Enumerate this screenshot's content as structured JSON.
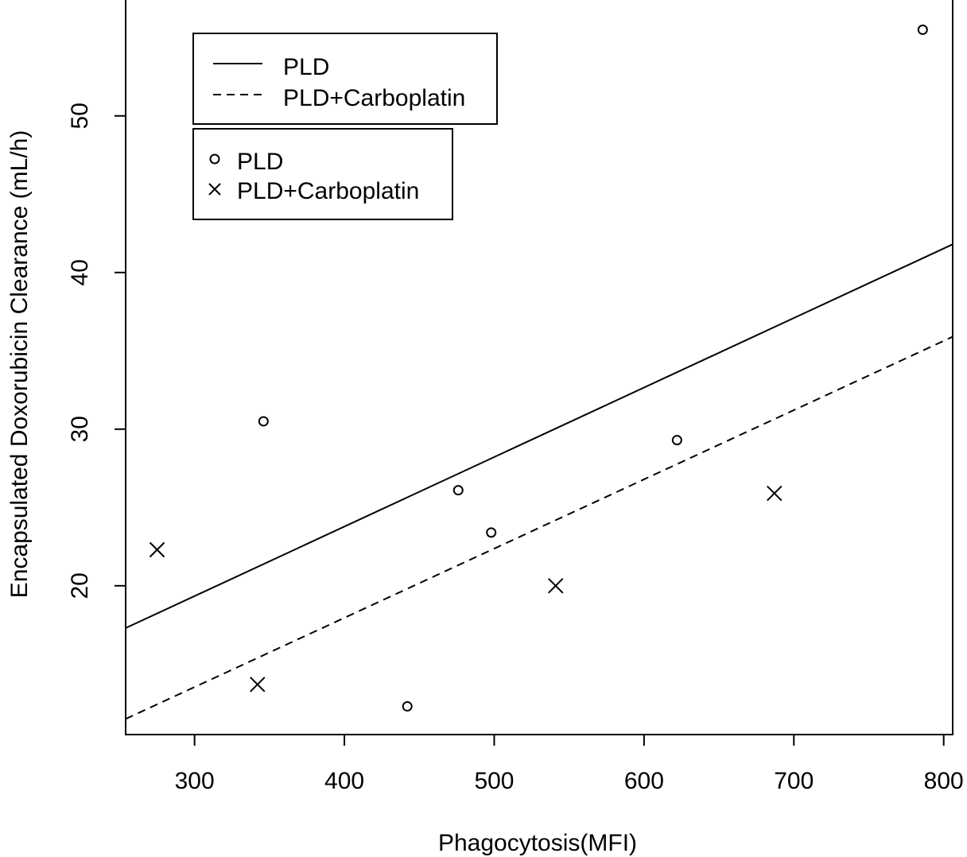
{
  "chart_data": {
    "type": "scatter",
    "title": "",
    "xlabel": "Phagocytosis(MFI)",
    "ylabel": "Encapsulated Doxorubicin Clearance (mL/h)",
    "xlim": [
      254,
      806
    ],
    "ylim": [
      10.5,
      57.5
    ],
    "x_ticks": [
      300,
      400,
      500,
      600,
      700,
      800
    ],
    "y_ticks": [
      20,
      30,
      40,
      50
    ],
    "grid": false,
    "series": [
      {
        "name": "PLD",
        "kind": "points",
        "marker": "circle",
        "points": [
          {
            "x": 346,
            "y": 30.5
          },
          {
            "x": 442,
            "y": 12.3
          },
          {
            "x": 476,
            "y": 26.1
          },
          {
            "x": 498,
            "y": 23.4
          },
          {
            "x": 622,
            "y": 29.3
          },
          {
            "x": 786,
            "y": 55.5
          }
        ]
      },
      {
        "name": "PLD+Carboplatin",
        "kind": "points",
        "marker": "cross",
        "points": [
          {
            "x": 275,
            "y": 22.3
          },
          {
            "x": 342,
            "y": 13.7
          },
          {
            "x": 541,
            "y": 20.0
          },
          {
            "x": 687,
            "y": 25.9
          }
        ]
      },
      {
        "name": "PLD",
        "kind": "line",
        "dash": "solid",
        "points": [
          {
            "x": 254,
            "y": 17.3
          },
          {
            "x": 806,
            "y": 41.8
          }
        ]
      },
      {
        "name": "PLD+Carboplatin",
        "kind": "line",
        "dash": "dashed",
        "points": [
          {
            "x": 254,
            "y": 11.5
          },
          {
            "x": 806,
            "y": 35.9
          }
        ]
      }
    ],
    "legends": [
      {
        "placement": "top-left",
        "entries": [
          {
            "label": "PLD",
            "symbol": "solid-line"
          },
          {
            "label": "PLD+Carboplatin",
            "symbol": "dashed-line"
          }
        ]
      },
      {
        "placement": "top-left",
        "entries": [
          {
            "label": "PLD",
            "symbol": "circle"
          },
          {
            "label": "PLD+Carboplatin",
            "symbol": "cross"
          }
        ]
      }
    ]
  }
}
